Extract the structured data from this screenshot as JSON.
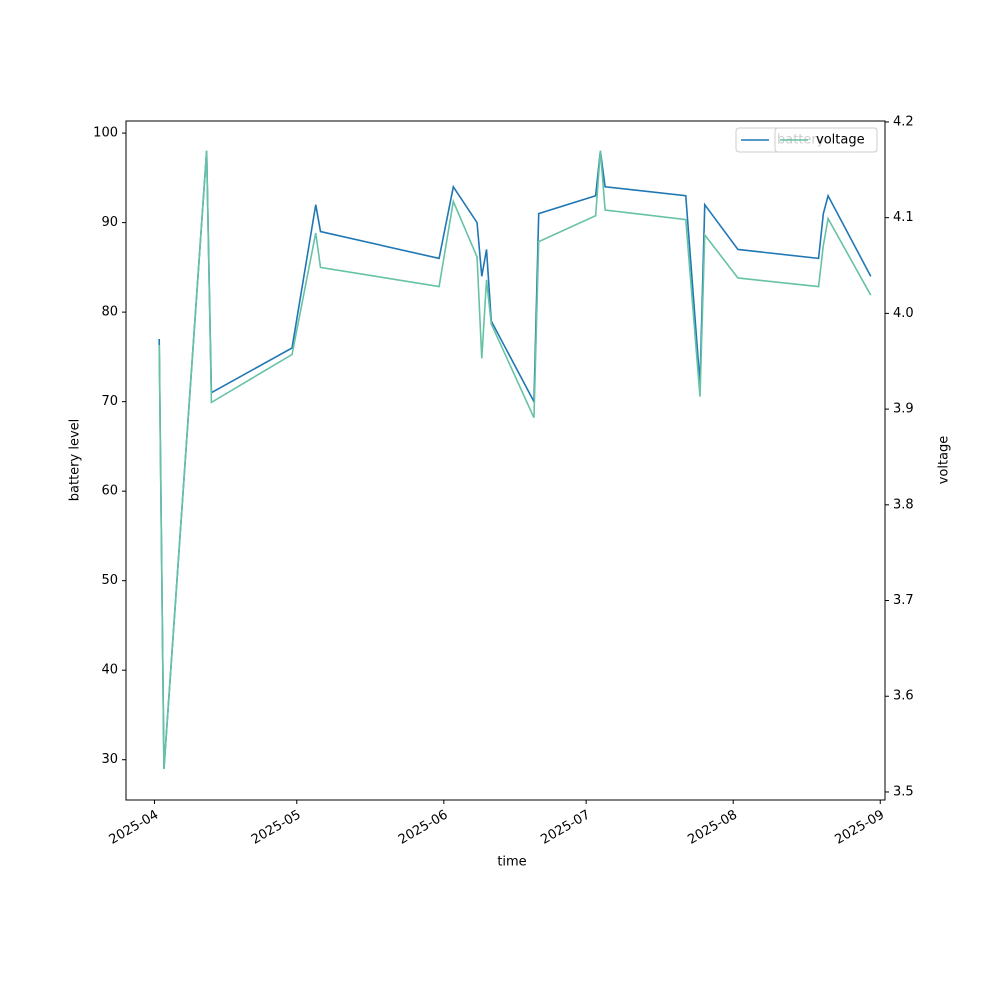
{
  "chart_data": {
    "type": "line",
    "x_label": "time",
    "y_label": "battery level",
    "y2_label": "voltage",
    "x": [
      "2025-04-02",
      "2025-04-03",
      "2025-04-12",
      "2025-04-13",
      "2025-04-30",
      "2025-05-05",
      "2025-05-06",
      "2025-05-31",
      "2025-06-03",
      "2025-06-08",
      "2025-06-09",
      "2025-06-10",
      "2025-06-11",
      "2025-06-20",
      "2025-06-21",
      "2025-07-03",
      "2025-07-04",
      "2025-07-05",
      "2025-07-22",
      "2025-07-25",
      "2025-07-26",
      "2025-08-02",
      "2025-08-19",
      "2025-08-20",
      "2025-08-21",
      "2025-08-30"
    ],
    "series": [
      {
        "name": "battery",
        "color": "#1f77b4",
        "values": [
          77,
          29,
          98,
          71,
          76,
          92,
          89,
          86,
          94,
          90,
          84,
          87,
          79,
          70,
          91,
          93,
          98,
          94,
          93,
          72,
          92,
          87,
          86,
          91,
          93,
          84
        ]
      },
      {
        "name": "voltage",
        "color": "#66c2a5",
        "axis": "y2",
        "values": [
          3.967,
          3.524,
          4.17,
          3.907,
          3.957,
          4.084,
          4.048,
          4.028,
          4.117,
          4.059,
          3.953,
          4.035,
          3.989,
          3.891,
          4.075,
          4.102,
          4.17,
          4.108,
          4.098,
          3.913,
          4.082,
          4.037,
          4.028,
          4.071,
          4.099,
          4.019
        ]
      }
    ],
    "xlim": [
      "2025-03-26",
      "2025-09-02"
    ],
    "xticks": [
      {
        "value": "2025-04-01",
        "label": "2025-04"
      },
      {
        "value": "2025-05-01",
        "label": "2025-05"
      },
      {
        "value": "2025-06-01",
        "label": "2025-06"
      },
      {
        "value": "2025-07-01",
        "label": "2025-07"
      },
      {
        "value": "2025-08-01",
        "label": "2025-08"
      },
      {
        "value": "2025-09-01",
        "label": "2025-09"
      }
    ],
    "ylim": [
      25.5,
      101.35
    ],
    "yticks": [
      30,
      40,
      50,
      60,
      70,
      80,
      90,
      100
    ],
    "y2lim": [
      3.4916,
      4.201
    ],
    "y2ticks": [
      3.5,
      3.6,
      3.7,
      3.8,
      3.9,
      {
        "value": 4,
        "label": "4.0"
      },
      4.1,
      4.2
    ],
    "legend": "upper right"
  }
}
